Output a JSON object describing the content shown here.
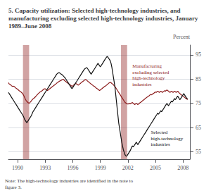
{
  "chart_data": {
    "type": "line",
    "title": "5. Capacity utilization: Selected high-technology industries, and manufacturing excluding selected high-technology industries, January 1989–June 2008",
    "ylabel": "Percent",
    "xlim": [
      1989.0,
      2008.75
    ],
    "xticks": [
      1990,
      1993,
      1996,
      1999,
      2002,
      2005,
      2008
    ],
    "ylim": [
      52,
      99
    ],
    "yticks": [
      55,
      65,
      75,
      85,
      95
    ],
    "grid": true,
    "recession_bands": [
      [
        1990.583,
        1991.25
      ],
      [
        2001.25,
        2001.917
      ]
    ],
    "annotations": [
      {
        "text": "Manufacturing\nexcluding selected\nhigh-technology\nindustries",
        "x": 2002.5,
        "y": 86.5
      },
      {
        "text": "Selected\nhigh-technology\nindustries",
        "x": 2004.5,
        "y": 60.5
      },
      {
        "text": "Note: The high-technology industries are identified in the note to\nfigure 3."
      }
    ],
    "x": [
      1989.0,
      1989.083,
      1989.167,
      1989.25,
      1989.333,
      1989.417,
      1989.5,
      1989.583,
      1989.667,
      1989.75,
      1989.833,
      1989.917,
      1990.0,
      1990.083,
      1990.167,
      1990.25,
      1990.333,
      1990.417,
      1990.5,
      1990.583,
      1990.667,
      1990.75,
      1990.833,
      1990.917,
      1991.0,
      1991.083,
      1991.167,
      1991.25,
      1991.333,
      1991.417,
      1991.5,
      1991.583,
      1991.667,
      1991.75,
      1991.833,
      1991.917,
      1992.0,
      1992.083,
      1992.167,
      1992.25,
      1992.333,
      1992.417,
      1992.5,
      1992.583,
      1992.667,
      1992.75,
      1992.833,
      1992.917,
      1993.0,
      1993.083,
      1993.167,
      1993.25,
      1993.333,
      1993.417,
      1993.5,
      1993.583,
      1993.667,
      1993.75,
      1993.833,
      1993.917,
      1994.0,
      1994.083,
      1994.167,
      1994.25,
      1994.333,
      1994.417,
      1994.5,
      1994.583,
      1994.667,
      1994.75,
      1994.833,
      1994.917,
      1995.0,
      1995.083,
      1995.167,
      1995.25,
      1995.333,
      1995.417,
      1995.5,
      1995.583,
      1995.667,
      1995.75,
      1995.833,
      1995.917,
      1996.0,
      1996.083,
      1996.167,
      1996.25,
      1996.333,
      1996.417,
      1996.5,
      1996.583,
      1996.667,
      1996.75,
      1996.833,
      1996.917,
      1997.0,
      1997.083,
      1997.167,
      1997.25,
      1997.333,
      1997.417,
      1997.5,
      1997.583,
      1997.667,
      1997.75,
      1997.833,
      1997.917,
      1998.0,
      1998.083,
      1998.167,
      1998.25,
      1998.333,
      1998.417,
      1998.5,
      1998.583,
      1998.667,
      1998.75,
      1998.833,
      1998.917,
      1999.0,
      1999.083,
      1999.167,
      1999.25,
      1999.333,
      1999.417,
      1999.5,
      1999.583,
      1999.667,
      1999.75,
      1999.833,
      1999.917,
      2000.0,
      2000.083,
      2000.167,
      2000.25,
      2000.333,
      2000.417,
      2000.5,
      2000.583,
      2000.667,
      2000.75,
      2000.833,
      2000.917,
      2001.0,
      2001.083,
      2001.167,
      2001.25,
      2001.333,
      2001.417,
      2001.5,
      2001.583,
      2001.667,
      2001.75,
      2001.833,
      2001.917,
      2002.0,
      2002.083,
      2002.167,
      2002.25,
      2002.333,
      2002.417,
      2002.5,
      2002.583,
      2002.667,
      2002.75,
      2002.833,
      2002.917,
      2003.0,
      2003.083,
      2003.167,
      2003.25,
      2003.333,
      2003.417,
      2003.5,
      2003.583,
      2003.667,
      2003.75,
      2003.833,
      2003.917,
      2004.0,
      2004.083,
      2004.167,
      2004.25,
      2004.333,
      2004.417,
      2004.5,
      2004.583,
      2004.667,
      2004.75,
      2004.833,
      2004.917,
      2005.0,
      2005.083,
      2005.167,
      2005.25,
      2005.333,
      2005.417,
      2005.5,
      2005.583,
      2005.667,
      2005.75,
      2005.833,
      2005.917,
      2006.0,
      2006.083,
      2006.167,
      2006.25,
      2006.333,
      2006.417,
      2006.5,
      2006.583,
      2006.667,
      2006.75,
      2006.833,
      2006.917,
      2007.0,
      2007.083,
      2007.167,
      2007.25,
      2007.333,
      2007.417,
      2007.5,
      2007.583,
      2007.667,
      2007.75,
      2007.833,
      2007.917,
      2008.0,
      2008.083,
      2008.167,
      2008.25,
      2008.333,
      2008.417,
      2008.5
    ],
    "series": [
      {
        "color": "#8b1a1a",
        "values": [
          83.5,
          83.0,
          82.8,
          82.6,
          82.3,
          82.0,
          82.1,
          82.0,
          81.8,
          81.5,
          81.2,
          81.0,
          80.8,
          80.5,
          80.2,
          80.0,
          79.8,
          79.5,
          79.2,
          78.8,
          78.2,
          77.5,
          76.8,
          76.2,
          75.8,
          75.5,
          75.2,
          75.0,
          75.3,
          75.7,
          76.0,
          76.5,
          76.8,
          77.0,
          77.3,
          77.6,
          78.0,
          78.3,
          78.7,
          79.0,
          79.3,
          79.6,
          79.8,
          80.0,
          80.2,
          80.5,
          80.8,
          81.0,
          81.0,
          80.7,
          80.5,
          80.3,
          80.5,
          80.8,
          81.0,
          81.3,
          81.5,
          81.8,
          82.0,
          82.3,
          82.5,
          82.8,
          83.0,
          83.3,
          83.5,
          83.8,
          84.0,
          84.2,
          84.3,
          84.5,
          84.7,
          84.8,
          84.8,
          84.5,
          84.2,
          84.0,
          83.7,
          83.5,
          83.2,
          83.0,
          82.7,
          82.5,
          82.3,
          82.0,
          82.2,
          82.5,
          82.8,
          83.0,
          83.2,
          83.0,
          82.8,
          82.5,
          82.7,
          83.0,
          83.2,
          83.5,
          83.8,
          84.0,
          84.2,
          84.5,
          84.7,
          84.8,
          84.6,
          84.3,
          84.0,
          83.8,
          83.5,
          83.2,
          83.0,
          82.7,
          82.5,
          82.2,
          82.0,
          81.8,
          81.5,
          81.2,
          81.0,
          80.8,
          80.5,
          80.3,
          80.5,
          80.8,
          81.0,
          81.3,
          81.5,
          81.8,
          82.0,
          82.2,
          82.5,
          82.7,
          83.0,
          83.3,
          83.5,
          83.7,
          83.5,
          83.2,
          83.0,
          82.7,
          82.3,
          82.0,
          81.5,
          81.0,
          80.5,
          80.0,
          79.5,
          79.0,
          78.5,
          78.0,
          77.5,
          77.0,
          76.5,
          76.0,
          75.5,
          75.2,
          75.0,
          74.8,
          74.7,
          74.8,
          75.0,
          74.8,
          75.0,
          75.2,
          75.3,
          75.0,
          74.8,
          74.5,
          74.8,
          75.0,
          74.8,
          74.5,
          74.8,
          75.0,
          75.3,
          75.5,
          75.8,
          76.0,
          76.3,
          76.5,
          76.8,
          77.0,
          77.3,
          77.5,
          77.8,
          78.0,
          78.2,
          78.5,
          78.7,
          78.5,
          78.8,
          79.0,
          79.2,
          79.5,
          79.7,
          79.5,
          79.8,
          80.0,
          79.8,
          79.5,
          79.8,
          80.0,
          79.8,
          79.5,
          79.8,
          80.0,
          80.2,
          80.0,
          80.3,
          80.5,
          80.3,
          80.0,
          79.8,
          79.5,
          79.8,
          80.0,
          79.8,
          79.5,
          79.8,
          80.0,
          79.8,
          79.5,
          79.8,
          80.0,
          79.7,
          79.3,
          79.0,
          78.7,
          78.5,
          78.2,
          78.0,
          77.7,
          77.5,
          77.2,
          77.0,
          76.8,
          76.5
        ]
      },
      {
        "color": "#111111",
        "values": [
          79.5,
          79.0,
          78.5,
          78.0,
          77.5,
          77.0,
          76.5,
          76.0,
          75.5,
          75.0,
          74.5,
          74.0,
          73.5,
          73.0,
          72.5,
          72.0,
          71.5,
          71.0,
          70.5,
          70.0,
          69.3,
          68.5,
          68.0,
          67.5,
          67.0,
          67.5,
          68.0,
          68.5,
          69.0,
          69.5,
          70.0,
          70.8,
          71.5,
          72.0,
          72.5,
          73.0,
          73.5,
          74.0,
          74.5,
          75.0,
          75.5,
          76.0,
          76.5,
          77.0,
          77.5,
          78.0,
          78.5,
          79.0,
          79.5,
          80.0,
          80.5,
          81.0,
          81.5,
          82.0,
          82.5,
          83.0,
          83.5,
          84.0,
          84.5,
          85.0,
          85.5,
          86.0,
          86.5,
          87.0,
          87.3,
          87.5,
          87.7,
          87.5,
          87.2,
          87.0,
          86.8,
          86.5,
          86.2,
          85.8,
          85.5,
          85.0,
          84.5,
          84.0,
          83.5,
          83.0,
          82.5,
          82.0,
          81.5,
          81.0,
          81.5,
          82.0,
          82.5,
          83.0,
          83.5,
          84.0,
          84.5,
          85.0,
          85.5,
          86.0,
          86.5,
          87.0,
          87.5,
          88.0,
          88.5,
          89.0,
          89.3,
          89.5,
          89.7,
          89.5,
          89.0,
          88.5,
          88.0,
          87.5,
          87.0,
          87.5,
          88.0,
          88.5,
          89.0,
          89.5,
          90.0,
          90.5,
          91.0,
          91.5,
          91.0,
          90.5,
          90.0,
          90.5,
          91.0,
          91.5,
          92.0,
          92.5,
          93.0,
          93.5,
          94.0,
          94.3,
          94.0,
          93.5,
          93.0,
          92.5,
          91.5,
          90.0,
          88.0,
          86.0,
          84.0,
          82.0,
          79.0,
          76.0,
          73.0,
          70.0,
          67.0,
          65.0,
          63.0,
          61.0,
          59.0,
          57.5,
          56.0,
          55.0,
          54.0,
          53.5,
          53.2,
          53.5,
          54.0,
          54.5,
          55.0,
          55.5,
          56.2,
          57.0,
          57.5,
          57.0,
          57.5,
          58.0,
          58.5,
          59.0,
          58.5,
          58.0,
          58.5,
          59.0,
          59.5,
          60.0,
          60.5,
          61.0,
          61.5,
          62.0,
          62.5,
          63.0,
          63.5,
          64.0,
          64.5,
          65.0,
          65.5,
          66.0,
          66.5,
          67.0,
          67.5,
          68.0,
          68.5,
          69.0,
          69.5,
          70.0,
          70.5,
          71.0,
          70.5,
          71.0,
          71.5,
          72.0,
          71.5,
          72.0,
          72.5,
          73.0,
          73.5,
          74.0,
          74.5,
          75.0,
          74.5,
          74.0,
          74.5,
          75.0,
          75.5,
          76.0,
          75.5,
          76.0,
          76.5,
          77.0,
          76.5,
          77.0,
          77.5,
          78.0,
          77.5,
          77.0,
          76.5,
          77.0,
          77.5,
          78.0,
          78.5,
          79.0,
          78.5,
          78.0,
          77.5,
          77.0,
          77.0
        ]
      }
    ]
  }
}
